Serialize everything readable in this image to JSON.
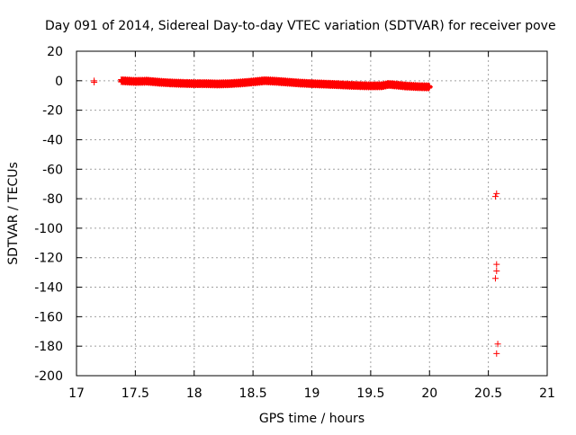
{
  "chart_data": {
    "type": "scatter",
    "title": "Day 091 of 2014, Sidereal Day-to-day VTEC variation (SDTVAR) for receiver pove",
    "xlabel": "GPS time / hours",
    "ylabel": "SDTVAR / TECUs",
    "xlim": [
      17,
      21
    ],
    "ylim": [
      -200,
      20
    ],
    "xticks": [
      17,
      17.5,
      18,
      18.5,
      19,
      19.5,
      20,
      20.5,
      21
    ],
    "xtick_labels": [
      "17",
      "17.5",
      "18",
      "18.5",
      "19",
      "19.5",
      "20",
      "20.5",
      "21"
    ],
    "yticks": [
      -200,
      -180,
      -160,
      -140,
      -120,
      -100,
      -80,
      -60,
      -40,
      -20,
      0,
      20
    ],
    "ytick_labels": [
      "-200",
      "-180",
      "-160",
      "-140",
      "-120",
      "-100",
      "-80",
      "-60",
      "-40",
      "-20",
      "0",
      "20"
    ],
    "grid": true,
    "marker": "+",
    "color": "#ff0000",
    "series": [
      {
        "name": "pove",
        "isolated": [
          {
            "x": 17.15,
            "y": 0.0
          },
          {
            "x": 17.15,
            "y": -1.0
          },
          {
            "x": 20.57,
            "y": -76.5
          },
          {
            "x": 20.56,
            "y": -78.5
          },
          {
            "x": 20.57,
            "y": -124.5
          },
          {
            "x": 20.57,
            "y": -129.0
          },
          {
            "x": 20.56,
            "y": -134.0
          },
          {
            "x": 20.58,
            "y": -178.5
          },
          {
            "x": 20.57,
            "y": -185.0
          }
        ],
        "dense_trend": [
          [
            17.38,
            0.0
          ],
          [
            17.5,
            -0.5
          ],
          [
            17.6,
            -0.3
          ],
          [
            17.7,
            -1.0
          ],
          [
            17.8,
            -1.5
          ],
          [
            17.9,
            -1.8
          ],
          [
            18.0,
            -2.0
          ],
          [
            18.1,
            -2.0
          ],
          [
            18.2,
            -2.2
          ],
          [
            18.3,
            -2.0
          ],
          [
            18.4,
            -1.5
          ],
          [
            18.5,
            -0.8
          ],
          [
            18.6,
            0.0
          ],
          [
            18.7,
            -0.4
          ],
          [
            18.8,
            -1.0
          ],
          [
            18.9,
            -1.6
          ],
          [
            19.0,
            -2.0
          ],
          [
            19.1,
            -2.3
          ],
          [
            19.2,
            -2.6
          ],
          [
            19.3,
            -3.0
          ],
          [
            19.4,
            -3.3
          ],
          [
            19.5,
            -3.5
          ],
          [
            19.6,
            -3.4
          ],
          [
            19.65,
            -2.5
          ],
          [
            19.7,
            -2.8
          ],
          [
            19.8,
            -3.6
          ],
          [
            19.9,
            -4.0
          ],
          [
            20.0,
            -4.2
          ]
        ],
        "dense_step_hours": 0.004
      }
    ]
  }
}
